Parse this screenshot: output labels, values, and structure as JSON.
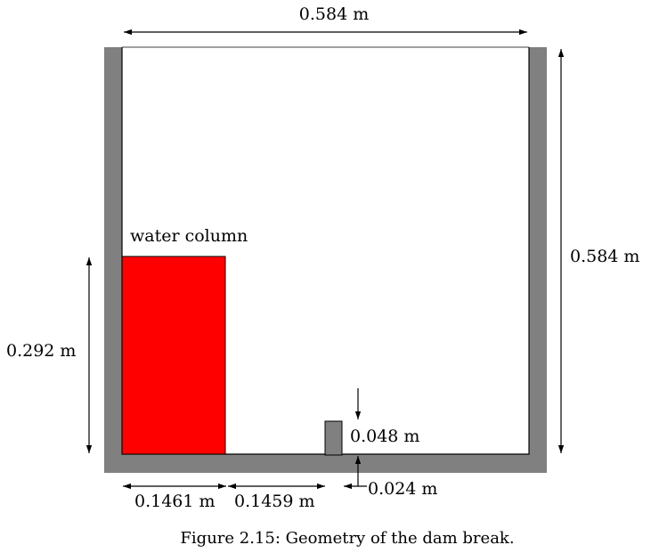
{
  "labels": {
    "top_width": "0.584 m",
    "right_height": "0.584 m",
    "water_label": "water column",
    "water_height": "0.292 m",
    "water_width": "0.1461 m",
    "gap_width": "0.1459 m",
    "obstacle_height": "0.048 m",
    "obstacle_width": "0.024 m"
  },
  "caption": "Figure 2.15: Geometry of the dam break.",
  "colors": {
    "wall": "#808080",
    "water": "#ff0000",
    "obstacle": "#808080",
    "outline": "#000000"
  }
}
